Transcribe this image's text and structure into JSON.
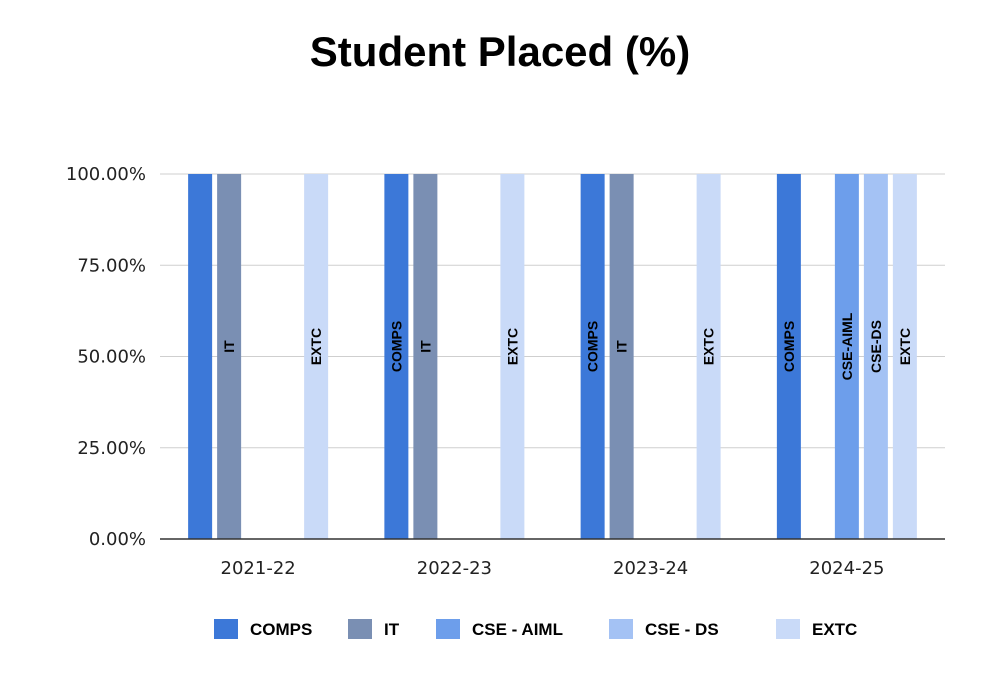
{
  "chart_data": {
    "type": "bar",
    "title": "Student Placed (%)",
    "xlabel": "",
    "ylabel": "",
    "categories": [
      "2021-22",
      "2022-23",
      "2023-24",
      "2024-25"
    ],
    "y_ticks": [
      "0.00%",
      "25.00%",
      "50.00%",
      "75.00%",
      "100.00%"
    ],
    "ylim": [
      0,
      100
    ],
    "grid": true,
    "legend_position": "bottom",
    "series": [
      {
        "name": "COMPS",
        "color": "#3c78d8",
        "values": [
          100,
          100,
          100,
          100
        ],
        "labels": [
          "",
          "COMPS",
          "COMPS",
          "COMPS"
        ]
      },
      {
        "name": "IT",
        "color": "#7a8fb3",
        "values": [
          100,
          100,
          100,
          null
        ],
        "labels": [
          "IT",
          "IT",
          "IT",
          ""
        ]
      },
      {
        "name": "CSE - AIML",
        "color": "#6d9eeb",
        "values": [
          null,
          null,
          null,
          100
        ],
        "labels": [
          "",
          "",
          "",
          "CSE-AIML"
        ]
      },
      {
        "name": "CSE - DS",
        "color": "#a4c2f4",
        "values": [
          null,
          null,
          null,
          100
        ],
        "labels": [
          "",
          "",
          "",
          "CSE-DS"
        ]
      },
      {
        "name": "EXTC",
        "color": "#c9daf8",
        "values": [
          100,
          100,
          100,
          100
        ],
        "labels": [
          "EXTC",
          "EXTC",
          "EXTC",
          "EXTC"
        ]
      }
    ]
  }
}
